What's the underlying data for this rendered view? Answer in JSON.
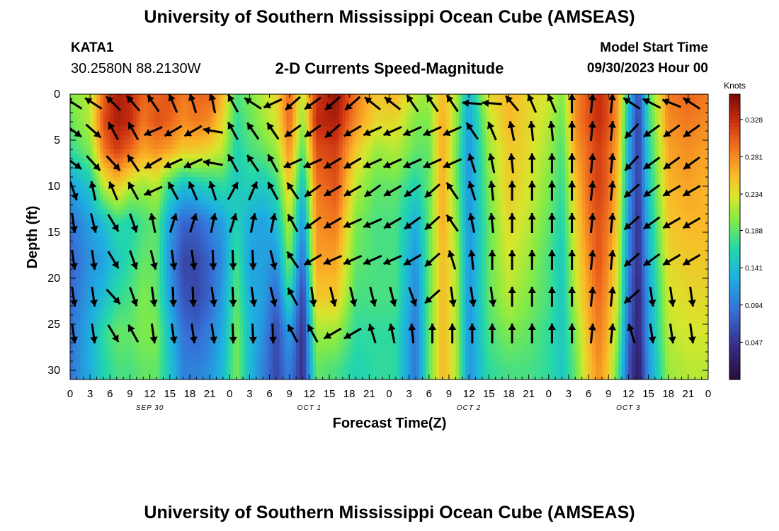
{
  "header": {
    "title": "University of Southern Mississippi Ocean Cube (AMSEAS)",
    "station": "KATA1",
    "coords": "30.2580N  88.2130W",
    "subtitle": "2-D Currents Speed-Magnitude",
    "model_start_label": "Model Start Time",
    "model_start_value": "09/30/2023 Hour 00"
  },
  "footer": {
    "title": "University of Southern Mississippi Ocean Cube (AMSEAS)"
  },
  "chart_data": {
    "type": "heatmap",
    "title": "2-D Currents Speed-Magnitude",
    "xlabel": "Forecast Time(Z)",
    "ylabel": "Depth (ft)",
    "xlim": [
      0,
      96
    ],
    "ylim": [
      0,
      31
    ],
    "x_ticks": [
      0,
      3,
      6,
      9,
      12,
      15,
      18,
      21,
      24,
      27,
      30,
      33,
      36,
      39,
      42,
      45,
      48,
      51,
      54,
      57,
      60,
      63,
      66,
      69,
      72,
      75,
      78,
      81,
      84,
      87,
      90,
      93,
      96
    ],
    "x_tick_labels": [
      "0",
      "3",
      "6",
      "9",
      "12",
      "15",
      "18",
      "21",
      "0",
      "3",
      "6",
      "9",
      "12",
      "15",
      "18",
      "21",
      "0",
      "3",
      "6",
      "9",
      "12",
      "15",
      "18",
      "21",
      "0",
      "3",
      "6",
      "9",
      "12",
      "15",
      "18",
      "21",
      "0"
    ],
    "day_labels": [
      {
        "x": 12,
        "label": "SEP 30"
      },
      {
        "x": 36,
        "label": "OCT 1"
      },
      {
        "x": 60,
        "label": "OCT 2"
      },
      {
        "x": 84,
        "label": "OCT 3"
      }
    ],
    "y_ticks": [
      0,
      5,
      10,
      15,
      20,
      25,
      30
    ],
    "y_tick_labels": [
      "0",
      "5",
      "10",
      "15",
      "20",
      "25",
      "30"
    ],
    "colorbar": {
      "label": "Knots",
      "min": 0.0,
      "max": 0.36,
      "ticks": [
        0.328,
        0.281,
        0.234,
        0.188,
        0.141,
        0.094,
        0.047
      ],
      "tick_labels": [
        "0.328",
        "0.281",
        "0.234",
        "0.188",
        "0.141",
        "0.094",
        "0.047"
      ]
    },
    "depths_ft": [
      0,
      3,
      6,
      10,
      14,
      18,
      22,
      26,
      30
    ],
    "speed_profiles": [
      {
        "hour": 0,
        "speeds": [
          0.2,
          0.19,
          0.17,
          0.12,
          0.09,
          0.08,
          0.08,
          0.09,
          0.09
        ]
      },
      {
        "hour": 3,
        "speeds": [
          0.22,
          0.22,
          0.2,
          0.15,
          0.12,
          0.11,
          0.12,
          0.13,
          0.13
        ]
      },
      {
        "hour": 5,
        "speeds": [
          0.3,
          0.31,
          0.29,
          0.22,
          0.14,
          0.12,
          0.14,
          0.17,
          0.16
        ]
      },
      {
        "hour": 7,
        "speeds": [
          0.34,
          0.34,
          0.32,
          0.25,
          0.17,
          0.15,
          0.17,
          0.19,
          0.18
        ]
      },
      {
        "hour": 9,
        "speeds": [
          0.33,
          0.33,
          0.3,
          0.22,
          0.16,
          0.17,
          0.18,
          0.19,
          0.18
        ]
      },
      {
        "hour": 11,
        "speeds": [
          0.3,
          0.29,
          0.27,
          0.21,
          0.18,
          0.19,
          0.2,
          0.2,
          0.19
        ]
      },
      {
        "hour": 13,
        "speeds": [
          0.3,
          0.31,
          0.28,
          0.22,
          0.19,
          0.19,
          0.19,
          0.2,
          0.19
        ]
      },
      {
        "hour": 15,
        "speeds": [
          0.31,
          0.3,
          0.27,
          0.17,
          0.12,
          0.11,
          0.12,
          0.14,
          0.15
        ]
      },
      {
        "hour": 17,
        "speeds": [
          0.29,
          0.28,
          0.25,
          0.14,
          0.08,
          0.06,
          0.07,
          0.09,
          0.1
        ]
      },
      {
        "hour": 19,
        "speeds": [
          0.3,
          0.29,
          0.25,
          0.15,
          0.08,
          0.06,
          0.06,
          0.08,
          0.1
        ]
      },
      {
        "hour": 21,
        "speeds": [
          0.3,
          0.28,
          0.24,
          0.16,
          0.1,
          0.08,
          0.08,
          0.1,
          0.11
        ]
      },
      {
        "hour": 23,
        "speeds": [
          0.26,
          0.24,
          0.22,
          0.17,
          0.12,
          0.11,
          0.12,
          0.13,
          0.14
        ]
      },
      {
        "hour": 25,
        "speeds": [
          0.18,
          0.17,
          0.16,
          0.15,
          0.16,
          0.18,
          0.19,
          0.2,
          0.2
        ]
      },
      {
        "hour": 27,
        "speeds": [
          0.2,
          0.19,
          0.18,
          0.16,
          0.13,
          0.12,
          0.13,
          0.14,
          0.14
        ]
      },
      {
        "hour": 29,
        "speeds": [
          0.22,
          0.21,
          0.19,
          0.15,
          0.12,
          0.12,
          0.12,
          0.11,
          0.1
        ]
      },
      {
        "hour": 31,
        "speeds": [
          0.24,
          0.23,
          0.21,
          0.17,
          0.14,
          0.11,
          0.08,
          0.06,
          0.06
        ]
      },
      {
        "hour": 33,
        "speeds": [
          0.3,
          0.3,
          0.28,
          0.25,
          0.22,
          0.2,
          0.17,
          0.12,
          0.1
        ]
      },
      {
        "hour": 35,
        "speeds": [
          0.22,
          0.2,
          0.18,
          0.14,
          0.11,
          0.08,
          0.05,
          0.04,
          0.04
        ]
      },
      {
        "hour": 37,
        "speeds": [
          0.32,
          0.33,
          0.31,
          0.29,
          0.28,
          0.27,
          0.25,
          0.21,
          0.19
        ]
      },
      {
        "hour": 40,
        "speeds": [
          0.35,
          0.34,
          0.32,
          0.31,
          0.29,
          0.27,
          0.25,
          0.21,
          0.18
        ]
      },
      {
        "hour": 43,
        "speeds": [
          0.29,
          0.28,
          0.25,
          0.22,
          0.2,
          0.19,
          0.18,
          0.17,
          0.16
        ]
      },
      {
        "hour": 46,
        "speeds": [
          0.25,
          0.24,
          0.21,
          0.19,
          0.18,
          0.18,
          0.18,
          0.17,
          0.17
        ]
      },
      {
        "hour": 49,
        "speeds": [
          0.26,
          0.24,
          0.22,
          0.19,
          0.18,
          0.18,
          0.18,
          0.17,
          0.17
        ]
      },
      {
        "hour": 52,
        "speeds": [
          0.22,
          0.2,
          0.19,
          0.16,
          0.13,
          0.11,
          0.1,
          0.09,
          0.09
        ]
      },
      {
        "hour": 54,
        "speeds": [
          0.21,
          0.2,
          0.19,
          0.19,
          0.19,
          0.19,
          0.19,
          0.19,
          0.19
        ]
      },
      {
        "hour": 56,
        "speeds": [
          0.26,
          0.27,
          0.27,
          0.27,
          0.27,
          0.26,
          0.26,
          0.26,
          0.26
        ]
      },
      {
        "hour": 58,
        "speeds": [
          0.22,
          0.21,
          0.2,
          0.2,
          0.21,
          0.22,
          0.22,
          0.22,
          0.22
        ]
      },
      {
        "hour": 60,
        "speeds": [
          0.13,
          0.12,
          0.11,
          0.11,
          0.11,
          0.11,
          0.11,
          0.11,
          0.11
        ]
      },
      {
        "hour": 63,
        "speeds": [
          0.24,
          0.22,
          0.21,
          0.2,
          0.19,
          0.19,
          0.19,
          0.18,
          0.17
        ]
      },
      {
        "hour": 66,
        "speeds": [
          0.26,
          0.26,
          0.25,
          0.25,
          0.24,
          0.23,
          0.22,
          0.2,
          0.18
        ]
      },
      {
        "hour": 69,
        "speeds": [
          0.24,
          0.24,
          0.24,
          0.23,
          0.22,
          0.21,
          0.2,
          0.19,
          0.18
        ]
      },
      {
        "hour": 72,
        "speeds": [
          0.23,
          0.22,
          0.21,
          0.2,
          0.19,
          0.18,
          0.18,
          0.17,
          0.17
        ]
      },
      {
        "hour": 74,
        "speeds": [
          0.2,
          0.19,
          0.18,
          0.17,
          0.16,
          0.15,
          0.15,
          0.15,
          0.15
        ]
      },
      {
        "hour": 76,
        "speeds": [
          0.28,
          0.28,
          0.27,
          0.25,
          0.24,
          0.23,
          0.22,
          0.2,
          0.19
        ]
      },
      {
        "hour": 78,
        "speeds": [
          0.31,
          0.31,
          0.3,
          0.3,
          0.29,
          0.28,
          0.27,
          0.26,
          0.25
        ]
      },
      {
        "hour": 79.5,
        "speeds": [
          0.33,
          0.33,
          0.32,
          0.32,
          0.31,
          0.31,
          0.3,
          0.29,
          0.28
        ]
      },
      {
        "hour": 81,
        "speeds": [
          0.31,
          0.31,
          0.3,
          0.3,
          0.29,
          0.28,
          0.27,
          0.26,
          0.25
        ]
      },
      {
        "hour": 82.5,
        "speeds": [
          0.27,
          0.27,
          0.26,
          0.25,
          0.24,
          0.23,
          0.22,
          0.2,
          0.18
        ]
      },
      {
        "hour": 84,
        "speeds": [
          0.15,
          0.14,
          0.13,
          0.12,
          0.11,
          0.1,
          0.09,
          0.08,
          0.07
        ]
      },
      {
        "hour": 85.5,
        "speeds": [
          0.06,
          0.05,
          0.05,
          0.05,
          0.04,
          0.04,
          0.03,
          0.03,
          0.02
        ]
      },
      {
        "hour": 87,
        "speeds": [
          0.18,
          0.17,
          0.16,
          0.15,
          0.14,
          0.13,
          0.12,
          0.12,
          0.11
        ]
      },
      {
        "hour": 90,
        "speeds": [
          0.29,
          0.28,
          0.27,
          0.26,
          0.25,
          0.24,
          0.23,
          0.22,
          0.21
        ]
      },
      {
        "hour": 93,
        "speeds": [
          0.3,
          0.29,
          0.28,
          0.27,
          0.26,
          0.25,
          0.24,
          0.23,
          0.22
        ]
      },
      {
        "hour": 96,
        "speeds": [
          0.29,
          0.28,
          0.27,
          0.26,
          0.26,
          0.25,
          0.24,
          0.23,
          0.22
        ]
      }
    ],
    "vector_depths_ft": [
      1,
      4,
      7.5,
      10.5,
      14,
      18,
      22,
      26
    ],
    "vector_rows": [
      [
        -1.0,
        -1.0,
        -0.8,
        -0.7,
        -0.6,
        -0.4,
        -0.3,
        -0.2,
        -0.5,
        -1.0,
        -2.0,
        -2.3,
        -2.2,
        -2.3,
        -2.3,
        -0.9,
        -0.9,
        -0.6,
        -0.6,
        -0.6,
        -1.5,
        -1.5,
        -0.7,
        -0.4,
        -0.4,
        0.0,
        0.1,
        0.1,
        -1.0,
        -1.1,
        -1.2,
        -1.0
      ],
      [
        2.2,
        2.3,
        -0.5,
        -0.5,
        -2.0,
        -2.1,
        -2.1,
        -1.4,
        -0.5,
        -0.6,
        -0.6,
        -2.2,
        -2.2,
        -2.3,
        -2.1,
        -2.0,
        -2.0,
        -2.0,
        -2.0,
        -2.0,
        -0.6,
        -0.4,
        -0.2,
        -0.1,
        -0.1,
        0.0,
        0.1,
        0.1,
        -2.4,
        -2.2,
        -2.2,
        -2.2
      ],
      [
        2.2,
        2.4,
        2.4,
        -0.6,
        -2.1,
        -2.0,
        -2.0,
        -1.4,
        -0.5,
        -0.6,
        -0.5,
        -2.0,
        -2.0,
        -2.1,
        -2.1,
        -2.0,
        -2.0,
        -2.0,
        -2.0,
        -2.0,
        -0.3,
        -0.2,
        -0.1,
        0.0,
        0.0,
        0.0,
        0.1,
        0.1,
        -2.4,
        -2.2,
        -2.2,
        -2.2
      ],
      [
        2.8,
        -0.2,
        -0.4,
        -0.5,
        -2.0,
        -0.5,
        -0.4,
        -0.3,
        0.5,
        0.4,
        -0.5,
        -0.6,
        -2.2,
        -2.1,
        -2.1,
        -2.2,
        -2.1,
        -2.2,
        -2.3,
        -0.6,
        -0.3,
        -0.1,
        0.0,
        0.0,
        0.0,
        0.0,
        0.1,
        0.1,
        -2.3,
        -2.2,
        -2.1,
        -2.1
      ],
      [
        3.0,
        2.9,
        2.6,
        2.8,
        -0.2,
        0.3,
        0.3,
        0.2,
        0.3,
        0.2,
        0.2,
        -0.5,
        -2.2,
        -2.1,
        -2.0,
        -2.0,
        -2.1,
        -2.2,
        -2.3,
        -0.6,
        -0.2,
        -0.1,
        0.0,
        0.0,
        0.0,
        0.0,
        0.1,
        0.1,
        -2.3,
        -2.2,
        -2.1,
        -2.1
      ],
      [
        3.0,
        3.0,
        2.6,
        2.8,
        2.9,
        3.0,
        3.0,
        3.1,
        3.1,
        3.1,
        2.9,
        -0.6,
        -2.1,
        -2.0,
        -2.0,
        -2.0,
        -2.0,
        -2.1,
        -2.3,
        -0.3,
        -0.1,
        0.0,
        0.0,
        0.0,
        0.0,
        0.0,
        0.1,
        0.1,
        -2.3,
        -2.2,
        -2.1,
        -2.1
      ],
      [
        3.0,
        3.0,
        2.4,
        2.8,
        3.0,
        3.1,
        3.1,
        3.0,
        3.1,
        3.0,
        2.9,
        -0.5,
        3.0,
        2.9,
        2.9,
        2.9,
        2.9,
        2.8,
        -2.3,
        3.0,
        3.0,
        3.0,
        0.0,
        0.0,
        0.0,
        0.0,
        0.1,
        0.1,
        -2.3,
        3.0,
        3.0,
        3.0
      ],
      [
        3.0,
        3.0,
        2.6,
        -0.5,
        3.0,
        3.0,
        3.0,
        3.0,
        3.1,
        3.1,
        3.1,
        -0.5,
        -0.5,
        -2.1,
        -2.1,
        -0.3,
        -0.2,
        -0.1,
        0.0,
        0.0,
        0.0,
        0.0,
        0.0,
        0.0,
        0.0,
        0.0,
        0.1,
        0.1,
        -0.3,
        3.0,
        3.0,
        3.0
      ]
    ]
  }
}
